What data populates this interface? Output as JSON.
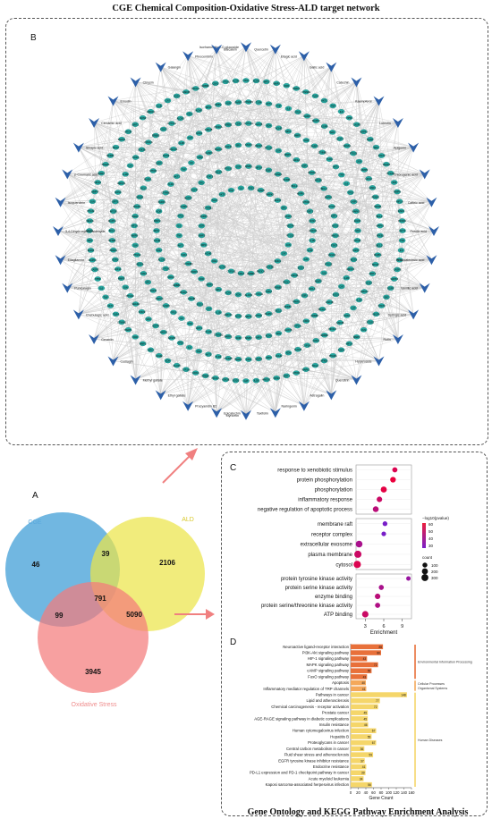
{
  "figure": {
    "top_title": "CGE Chemical Composition-Oxidative Stress-ALD target network",
    "bottom_title": "Gene Ontology and KEGG Pathway Enrichment Analysis"
  },
  "panels": {
    "a": "A",
    "b": "B",
    "c": "C",
    "d": "D"
  },
  "network": {
    "compound_labels": [
      "Isorhamnetin 3-O-glucoside",
      "Quercetin",
      "Ellagic acid",
      "Gallic acid",
      "Catechin",
      "Kaempferol",
      "Luteolin",
      "Apigenin",
      "Chlorogenic acid",
      "Caffeic acid",
      "Ferulic acid",
      "Protocatechuic acid",
      "Vanillic acid",
      "Syringic acid",
      "Rutin",
      "Hyperoside",
      "Quercitrin",
      "Astragalin",
      "Naringenin",
      "Taxifolin",
      "Myricetin",
      "Epicatechin",
      "Procyanidin B2",
      "Ethyl gallate",
      "Methyl gallate",
      "Corilagin",
      "Geraniin",
      "Chebulagic acid",
      "Punicalagin",
      "Ellagitannin",
      "3,4-Dihydroxybenzaldehyde",
      "Isoquercitrin",
      "p-Coumaric acid",
      "Sinapic acid",
      "Cinnamic acid",
      "Emodin",
      "Chrysin",
      "Galangin",
      "Pinocembrin",
      "Baicalein"
    ],
    "target_labels": [
      "AKT1",
      "TNF",
      "IL6",
      "TP53",
      "CASP3",
      "MAPK3",
      "EGFR",
      "SRC",
      "STAT3",
      "VEGFA",
      "PTGS2",
      "JUN",
      "MMP9",
      "HIF1A",
      "ESR1",
      "PPARG",
      "NFKB1",
      "BCL2",
      "MAPK1",
      "MTOR",
      "SIRT1",
      "NOS3",
      "HMOX1",
      "IL1B",
      "CAT",
      "SOD1",
      "GSK3B",
      "PIK3CA",
      "ERBB2",
      "CDK2",
      "CYP1A1",
      "ALOX5",
      "XDH",
      "ACHE",
      "MPO",
      "MMP2",
      "KDR",
      "PARP1",
      "CTNNB1",
      "TLR4"
    ]
  },
  "venn": {
    "sets": [
      {
        "name": "CGE",
        "color": "#3a9bd5",
        "label_color": "#5aa9dd"
      },
      {
        "name": "ALD",
        "color": "#ece54a",
        "label_color": "#d8c82a"
      },
      {
        "name": "Oxidative Stress",
        "color": "#f47c7c",
        "label_color": "#ef8d8d"
      }
    ],
    "regions": {
      "cge_only": "46",
      "ald_only": "2106",
      "ox_only": "3945",
      "cge_ald": "39",
      "cge_ox": "99",
      "ald_ox": "5090",
      "all": "791"
    }
  },
  "go": {
    "xlabel": "Enrichment",
    "xticks": [
      "3",
      "6",
      "9"
    ],
    "xrange": [
      1.5,
      10.5
    ],
    "color_legend_title": "−log10(pvalue)",
    "color_ticks": [
      "60",
      "50",
      "40",
      "30"
    ],
    "size_legend_title": "count",
    "size_ticks": [
      "100",
      "200",
      "300"
    ],
    "groups": [
      {
        "name": "Biological Process",
        "terms": [
          {
            "label": "response to xenobiotic stimulus",
            "enrichment": 7.8,
            "logp": 55,
            "count": 120
          },
          {
            "label": "protein phosphorylation",
            "enrichment": 7.5,
            "logp": 60,
            "count": 160
          },
          {
            "label": "phosphorylation",
            "enrichment": 6.0,
            "logp": 58,
            "count": 200
          },
          {
            "label": "inflammatory response",
            "enrichment": 5.3,
            "logp": 50,
            "count": 150
          },
          {
            "label": "negative regulation of apoptotic process",
            "enrichment": 4.7,
            "logp": 45,
            "count": 180
          }
        ]
      },
      {
        "name": "Cellular Component",
        "terms": [
          {
            "label": "membrane raft",
            "enrichment": 6.2,
            "logp": 25,
            "count": 90
          },
          {
            "label": "receptor complex",
            "enrichment": 6.0,
            "logp": 25,
            "count": 80
          },
          {
            "label": "extracellular exosome",
            "enrichment": 2.0,
            "logp": 40,
            "count": 280
          },
          {
            "label": "plasma membrane",
            "enrichment": 1.8,
            "logp": 50,
            "count": 330
          },
          {
            "label": "cytosol",
            "enrichment": 1.7,
            "logp": 55,
            "count": 350
          }
        ]
      },
      {
        "name": "Molecular Function",
        "terms": [
          {
            "label": "protein tyrosine kinase activity",
            "enrichment": 10.0,
            "logp": 35,
            "count": 70
          },
          {
            "label": "protein serine kinase activity",
            "enrichment": 5.6,
            "logp": 40,
            "count": 110
          },
          {
            "label": "enzyme binding",
            "enrichment": 5.0,
            "logp": 45,
            "count": 150
          },
          {
            "label": "protein serine/threonine kinase activity",
            "enrichment": 5.0,
            "logp": 42,
            "count": 120
          },
          {
            "label": "ATP binding",
            "enrichment": 3.0,
            "logp": 50,
            "count": 240
          }
        ]
      }
    ]
  },
  "kegg": {
    "xlabel": "Gene Count",
    "xticks": [
      "0",
      "20",
      "40",
      "60",
      "80",
      "100",
      "120",
      "140",
      "160"
    ],
    "xmax": 160,
    "categories": [
      {
        "name": "Environmental Information Processing",
        "color": "#e8703a",
        "pathways": [
          {
            "name": "Neuroactive ligand-receptor interaction",
            "count": 85
          },
          {
            "name": "PI3K-Akt signaling pathway",
            "count": 80
          },
          {
            "name": "HIF-1 signaling pathway",
            "count": 43
          },
          {
            "name": "MAPK signaling pathway",
            "count": 72
          },
          {
            "name": "cAMP signaling pathway",
            "count": 55
          },
          {
            "name": "FoxO signaling pathway",
            "count": 43
          }
        ]
      },
      {
        "name": "Cellular Processes Organismal Systems",
        "color": "#f4a85a",
        "pathways": [
          {
            "name": "Apoptosis",
            "count": 40
          },
          {
            "name": "Inflammatory mediator regulation of TRP channels",
            "count": 41
          }
        ]
      },
      {
        "name": "Human Diseases",
        "color": "#f5d66a",
        "pathways": [
          {
            "name": "Pathways in cancer",
            "count": 148
          },
          {
            "name": "Lipid and atherosclerosis",
            "count": 77
          },
          {
            "name": "Chemical carcinogenesis - receptor activation",
            "count": 72
          },
          {
            "name": "Prostate cancer",
            "count": 45
          },
          {
            "name": "AGE-RAGE signaling pathway in diabetic complications",
            "count": 45
          },
          {
            "name": "Insulin resistance",
            "count": 46
          },
          {
            "name": "Human cytomegalovirus infection",
            "count": 67
          },
          {
            "name": "Hepatitis B",
            "count": 55
          },
          {
            "name": "Proteoglycans in cancer",
            "count": 67
          },
          {
            "name": "Central carbon metabolism in cancer",
            "count": 36
          },
          {
            "name": "Fluid shear stress and atherosclerosis",
            "count": 59
          },
          {
            "name": "EGFR tyrosine kinase inhibitor resistance",
            "count": 37
          },
          {
            "name": "Endocrine resistance",
            "count": 41
          },
          {
            "name": "PD-L1 expression and PD-1 checkpoint pathway in cancer",
            "count": 39
          },
          {
            "name": "Acute myeloid leukemia",
            "count": 34
          },
          {
            "name": "Kaposi sarcoma-associated herpesvirus infection",
            "count": 56
          }
        ]
      }
    ]
  }
}
